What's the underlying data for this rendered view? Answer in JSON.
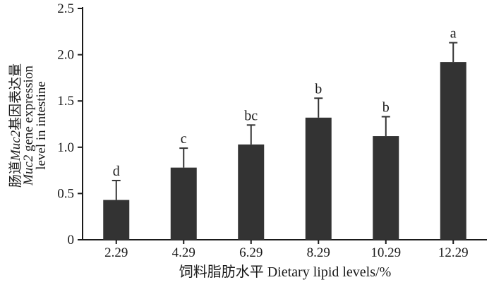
{
  "chart_data": {
    "type": "bar",
    "categories": [
      "2.29",
      "4.29",
      "6.29",
      "8.29",
      "10.29",
      "12.29"
    ],
    "values": [
      0.43,
      0.78,
      1.03,
      1.32,
      1.12,
      1.92
    ],
    "errors": [
      0.21,
      0.21,
      0.21,
      0.21,
      0.21,
      0.21
    ],
    "significance_letters": [
      "d",
      "c",
      "bc",
      "b",
      "b",
      "a"
    ],
    "xlabel": "饲料脂肪水平  Dietary lipid levels/%",
    "ylabel_lines": [
      {
        "parts": [
          {
            "text": "肠道",
            "italic": false
          },
          {
            "text": "Muc2",
            "italic": true
          },
          {
            "text": "基因表达量",
            "italic": false
          }
        ]
      },
      {
        "parts": [
          {
            "text": "Muc2",
            "italic": true
          },
          {
            "text": " gene expression",
            "italic": false
          }
        ]
      },
      {
        "parts": [
          {
            "text": "level in intestine",
            "italic": false
          }
        ]
      }
    ],
    "ylim": [
      0,
      2.5
    ],
    "yticks": [
      "0",
      "0.5",
      "1.0",
      "1.5",
      "2.0",
      "2.5"
    ],
    "bar_color": "#333333",
    "axis_color": "#1a1a1a",
    "grid": false,
    "legend": "none"
  }
}
